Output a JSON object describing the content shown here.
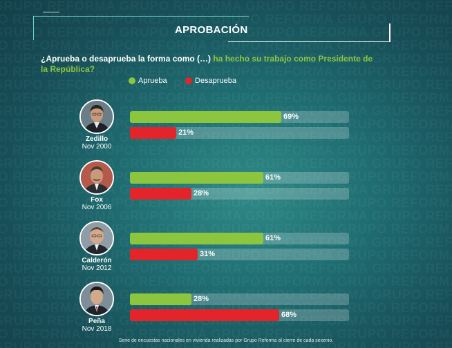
{
  "header": {
    "title": "APROBACIÓN",
    "question_part1": "¿Aprueba o desaprueba la forma como (…) ",
    "question_part2": "ha hecho su trabajo como Presidente de la República?"
  },
  "watermark_text": "GRUPO REFORMA",
  "legend": [
    {
      "label": "Aprueba",
      "color": "#8cc63f"
    },
    {
      "label": "Desaprueba",
      "color": "#e3242b"
    }
  ],
  "footer": "Serie de encuestas nacionales en vivienda realizadas por Grupo Reforma al cierre de cada sexenio.",
  "chart_data": {
    "type": "bar",
    "orientation": "horizontal",
    "title": "APROBACIÓN",
    "categories": [
      "Zedillo",
      "Fox",
      "Calderón",
      "Peña"
    ],
    "dates": [
      "Nov 2000",
      "Nov 2006",
      "Nov 2012",
      "Nov 2018"
    ],
    "series": [
      {
        "name": "Aprueba",
        "color": "#8cc63f",
        "values": [
          69,
          61,
          61,
          28
        ]
      },
      {
        "name": "Desaprueba",
        "color": "#e3242b",
        "values": [
          21,
          28,
          31,
          68
        ]
      }
    ],
    "xlim": [
      0,
      100
    ],
    "value_suffix": "%"
  }
}
